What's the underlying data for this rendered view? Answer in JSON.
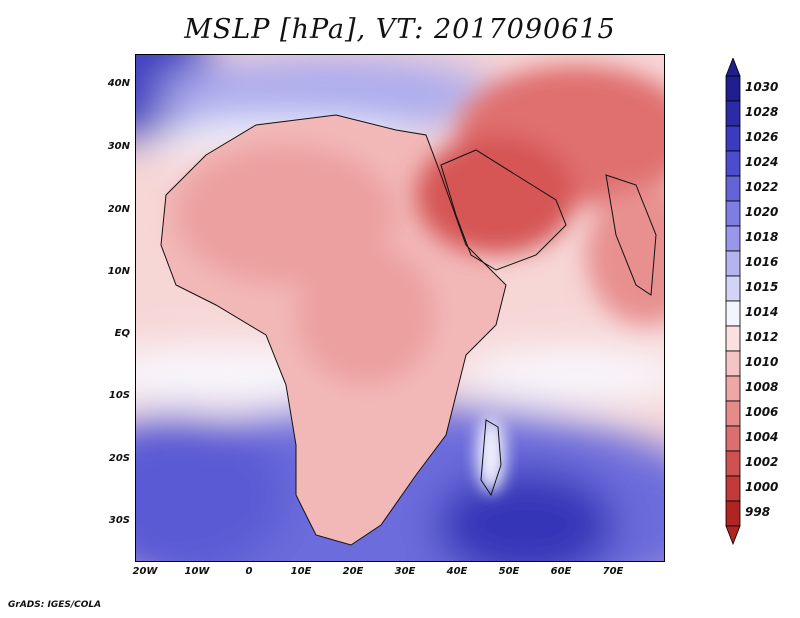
{
  "title": "MSLP [hPa], VT: 2017090615",
  "credit": "GrADS: IGES/COLA",
  "lat_labels": [
    "40N",
    "30N",
    "20N",
    "10N",
    "EQ",
    "10S",
    "20S",
    "30S"
  ],
  "lon_labels": [
    "20W",
    "10W",
    "0",
    "10E",
    "20E",
    "30E",
    "40E",
    "50E",
    "60E",
    "70E"
  ],
  "colorbar": {
    "levels": [
      "1030",
      "1028",
      "1026",
      "1024",
      "1022",
      "1020",
      "1018",
      "1016",
      "1015",
      "1014",
      "1012",
      "1010",
      "1008",
      "1006",
      "1004",
      "1002",
      "1000",
      "998"
    ],
    "colors": [
      "#1f1f8f",
      "#2b2ba8",
      "#3b3bc0",
      "#4c4ccf",
      "#6464d9",
      "#7d7de3",
      "#9898ea",
      "#b4b4f1",
      "#d3d3f8",
      "#f4f4fd",
      "#fbe0e0",
      "#f5c4c4",
      "#eea6a6",
      "#e58b8b",
      "#db6e6e",
      "#cf5252",
      "#c33a3a",
      "#b02424"
    ]
  },
  "pressure_fields": {
    "land_base": "#f2b8b8",
    "sahara": "#eca0a0",
    "arabia": "#d65555",
    "iran": "#e07070",
    "mediterranean": "#aaaaee",
    "atlantic_sw": "#5a5ad4",
    "indian_high": "#3636b8",
    "ne_atlantic": "#4040c0",
    "india": "#e89090",
    "equatorial_band": "#fadcdc",
    "ridge_white": "#f8f8fe",
    "southern_ocean": "#6c6cdc",
    "madagascar": "#f5f5ff"
  }
}
